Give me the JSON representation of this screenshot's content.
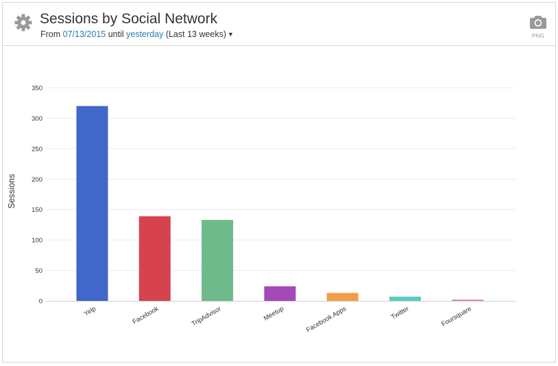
{
  "header": {
    "title": "Sessions by Social Network",
    "from_label": "From",
    "start_date": "07/13/2015",
    "until_label": "until",
    "end_date": "yesterday",
    "range_label": "(Last 13 weeks)",
    "settings_icon": "gear-icon",
    "export_icon": "camera-icon",
    "export_label": "PNG"
  },
  "chart_data": {
    "type": "bar",
    "categories": [
      "Yelp",
      "Facebook",
      "TripAdvisor",
      "Meetup",
      "Facebook Apps",
      "Twitter",
      "Foursquare"
    ],
    "values": [
      320,
      139,
      133,
      24,
      13,
      7,
      2
    ],
    "colors": [
      "#4267cb",
      "#d6434f",
      "#6fba8a",
      "#a349b8",
      "#f0a048",
      "#5bcbc0",
      "#e27a9c"
    ],
    "ylabel": "Sessions",
    "ylim": [
      0,
      350
    ],
    "yticks": [
      0,
      50,
      100,
      150,
      200,
      250,
      300,
      350
    ],
    "grid": true
  }
}
